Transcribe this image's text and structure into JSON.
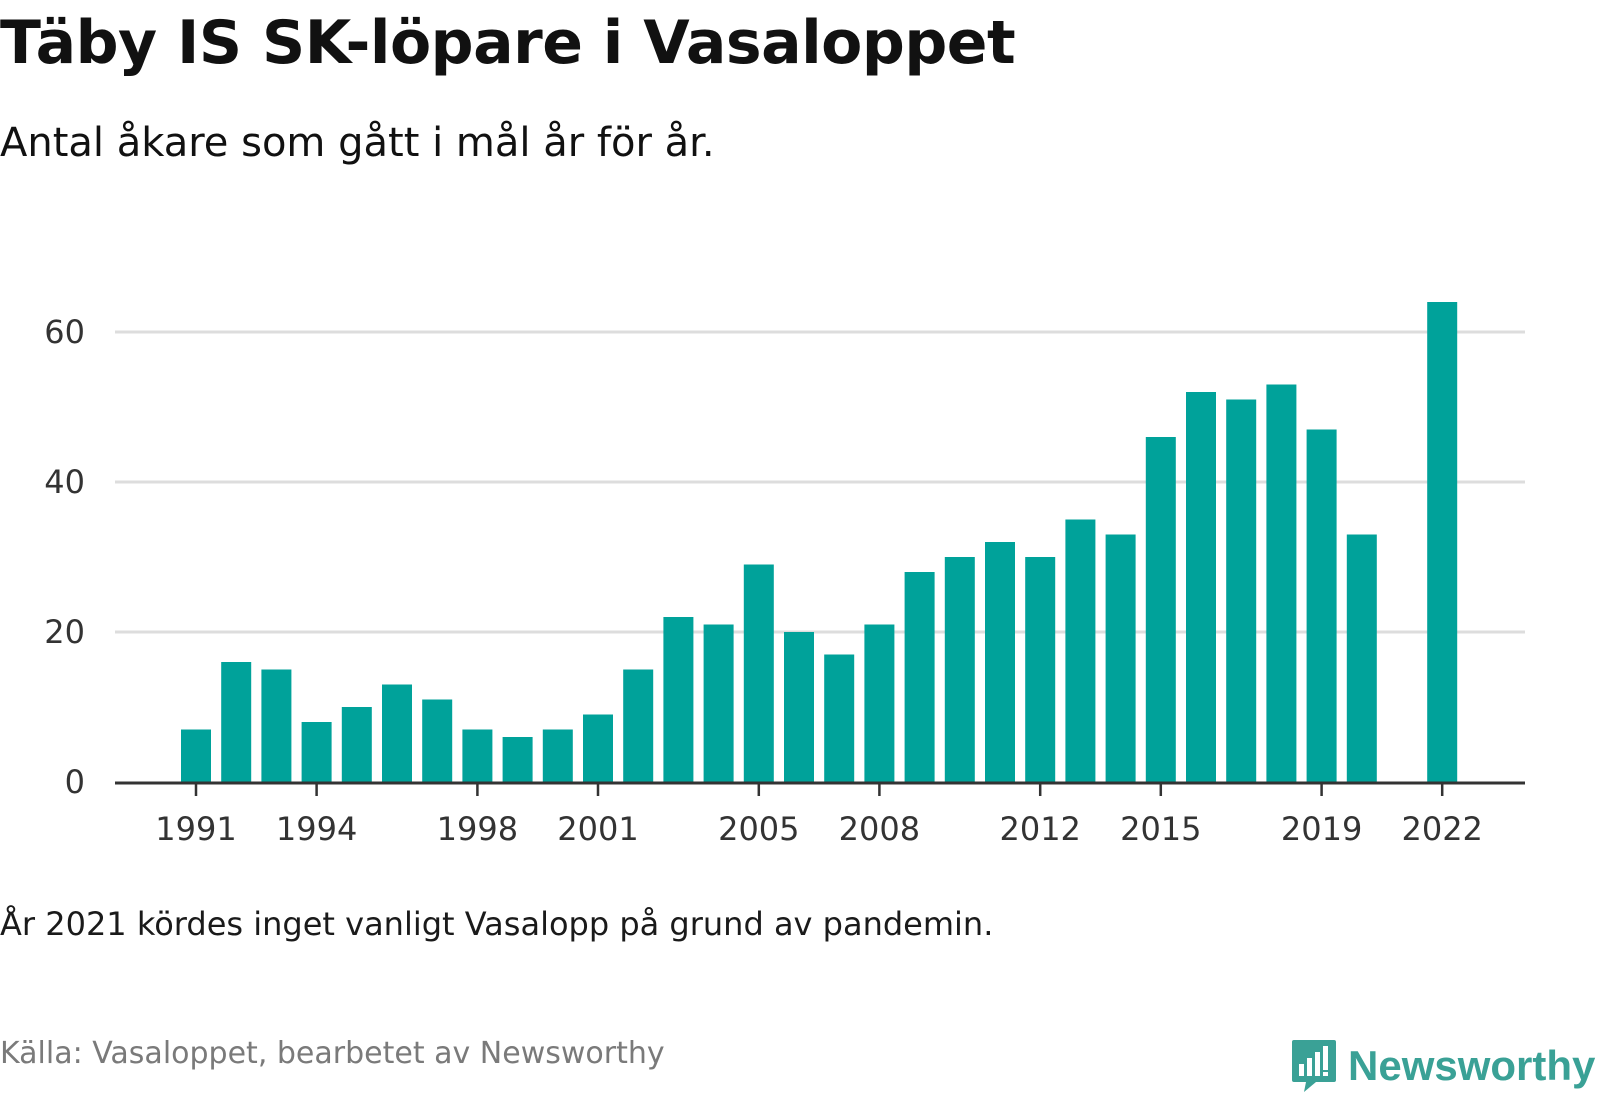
{
  "title": "Täby IS SK-löpare i Vasaloppet",
  "subtitle": "Antal åkare som gått i mål år för år.",
  "note": "År 2021 kördes inget vanligt Vasalopp på grund av pandemin.",
  "source": "Källa: Vasaloppet, bearbetet av Newsworthy",
  "brand": {
    "name": "Newsworthy",
    "color": "#3aa196"
  },
  "chart_data": {
    "type": "bar",
    "bar_color": "#00a29a",
    "x": [
      1991,
      1992,
      1993,
      1994,
      1995,
      1996,
      1997,
      1998,
      1999,
      2000,
      2001,
      2002,
      2003,
      2004,
      2005,
      2006,
      2007,
      2008,
      2009,
      2010,
      2011,
      2012,
      2013,
      2014,
      2015,
      2016,
      2017,
      2018,
      2019,
      2020,
      2021,
      2022
    ],
    "values": [
      7,
      16,
      15,
      8,
      10,
      13,
      11,
      7,
      6,
      7,
      9,
      15,
      22,
      21,
      29,
      20,
      17,
      21,
      28,
      30,
      32,
      30,
      35,
      33,
      46,
      52,
      51,
      53,
      47,
      33,
      null,
      64
    ],
    "x_ticks": [
      "1991",
      "1994",
      "1998",
      "2001",
      "2005",
      "2008",
      "2012",
      "2015",
      "2019",
      "2022"
    ],
    "y_ticks": [
      "0",
      "20",
      "40",
      "60"
    ],
    "ylim": [
      0,
      65
    ],
    "grid": true
  }
}
